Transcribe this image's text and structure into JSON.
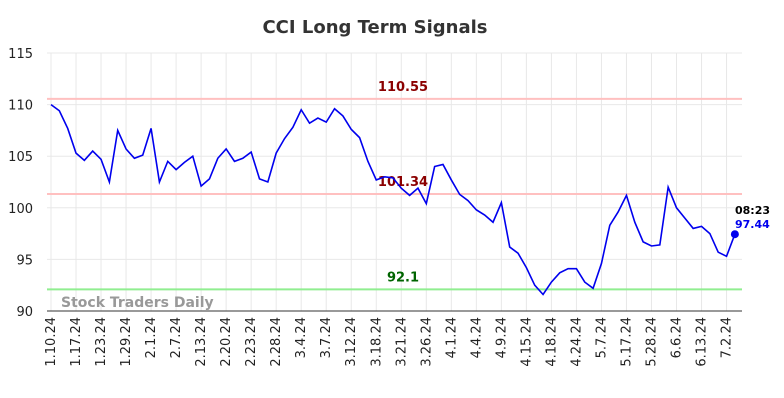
{
  "chart_data": {
    "type": "line",
    "title": "CCI Long Term Signals",
    "watermark": "Stock Traders Daily",
    "categories": [
      "1.10.24",
      null,
      null,
      "1.17.24",
      null,
      null,
      "1.23.24",
      null,
      null,
      "1.29.24",
      null,
      null,
      "2.1.24",
      null,
      null,
      "2.7.24",
      null,
      null,
      "2.13.24",
      null,
      null,
      "2.20.24",
      null,
      null,
      "2.23.24",
      null,
      null,
      "2.28.24",
      null,
      null,
      "3.4.24",
      null,
      null,
      "3.7.24",
      null,
      null,
      "3.12.24",
      null,
      null,
      "3.18.24",
      null,
      null,
      "3.21.24",
      null,
      null,
      "3.26.24",
      null,
      null,
      "4.1.24",
      null,
      null,
      "4.4.24",
      null,
      null,
      "4.9.24",
      null,
      null,
      "4.15.24",
      null,
      null,
      "4.18.24",
      null,
      null,
      "4.24.24",
      null,
      null,
      "5.7.24",
      null,
      null,
      "5.17.24",
      null,
      null,
      "5.28.24",
      null,
      null,
      "6.6.24",
      null,
      null,
      "6.13.24",
      null,
      null,
      "7.2.24",
      null
    ],
    "series": [
      {
        "name": "CCI",
        "color": "#0000ee",
        "values": [
          110.0,
          109.4,
          107.7,
          105.3,
          104.6,
          105.5,
          104.7,
          102.5,
          107.5,
          105.7,
          104.8,
          105.1,
          107.7,
          102.5,
          104.5,
          103.7,
          104.4,
          105.0,
          102.1,
          102.8,
          104.8,
          105.7,
          104.5,
          104.8,
          105.4,
          102.8,
          102.5,
          105.3,
          106.7,
          107.8,
          109.5,
          108.2,
          108.7,
          108.3,
          109.6,
          108.9,
          107.6,
          106.8,
          104.5,
          102.7,
          103.0,
          102.9,
          101.9,
          101.2,
          101.9,
          100.4,
          104.0,
          104.2,
          102.7,
          101.3,
          100.7,
          99.8,
          99.3,
          98.6,
          100.5,
          96.2,
          95.6,
          94.2,
          92.5,
          91.6,
          92.8,
          93.7,
          94.1,
          94.1,
          92.8,
          92.2,
          94.6,
          98.3,
          99.6,
          101.2,
          98.6,
          96.7,
          96.3,
          96.4,
          102.0,
          100.0,
          99.0,
          98.0,
          98.2,
          97.5,
          95.7,
          95.3,
          97.44
        ]
      }
    ],
    "last_time": "08:23",
    "hlines": [
      {
        "value": 110.55,
        "color": "#ffc0c0",
        "label_color": "#8b0000"
      },
      {
        "value": 101.34,
        "color": "#ffc0c0",
        "label_color": "#8b0000"
      },
      {
        "value": 92.1,
        "color": "#90ee90",
        "label_color": "#006400"
      }
    ],
    "ylim": [
      90,
      115
    ],
    "yticks": [
      90,
      95,
      100,
      105,
      110,
      115
    ],
    "grid": true
  }
}
